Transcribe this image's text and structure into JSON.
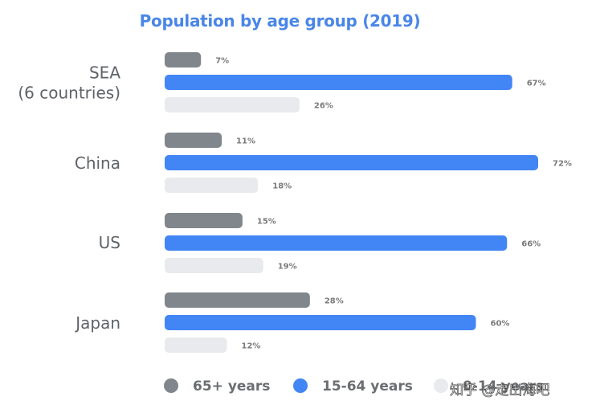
{
  "chart_data": {
    "type": "bar",
    "orientation": "horizontal",
    "title": "Population by age group (2019)",
    "categories": [
      "SEA\n(6 countries)",
      "China",
      "US",
      "Japan"
    ],
    "series": [
      {
        "name": "65+ years",
        "color": "#80868b",
        "values": [
          7,
          11,
          15,
          28
        ]
      },
      {
        "name": "15-64 years",
        "color": "#4285f4",
        "values": [
          67,
          72,
          66,
          60
        ]
      },
      {
        "name": "0-14 years",
        "color": "#e8eaed",
        "values": [
          26,
          18,
          19,
          12
        ]
      }
    ],
    "value_suffix": "%",
    "xlim": [
      0,
      72
    ],
    "grid": false,
    "legend_placement": "bottom"
  },
  "legend": {
    "visible_labels": [
      "65+ years",
      "15-64 years",
      "0-14 years"
    ]
  },
  "watermark": {
    "text": "知乎 @走出海吧"
  }
}
